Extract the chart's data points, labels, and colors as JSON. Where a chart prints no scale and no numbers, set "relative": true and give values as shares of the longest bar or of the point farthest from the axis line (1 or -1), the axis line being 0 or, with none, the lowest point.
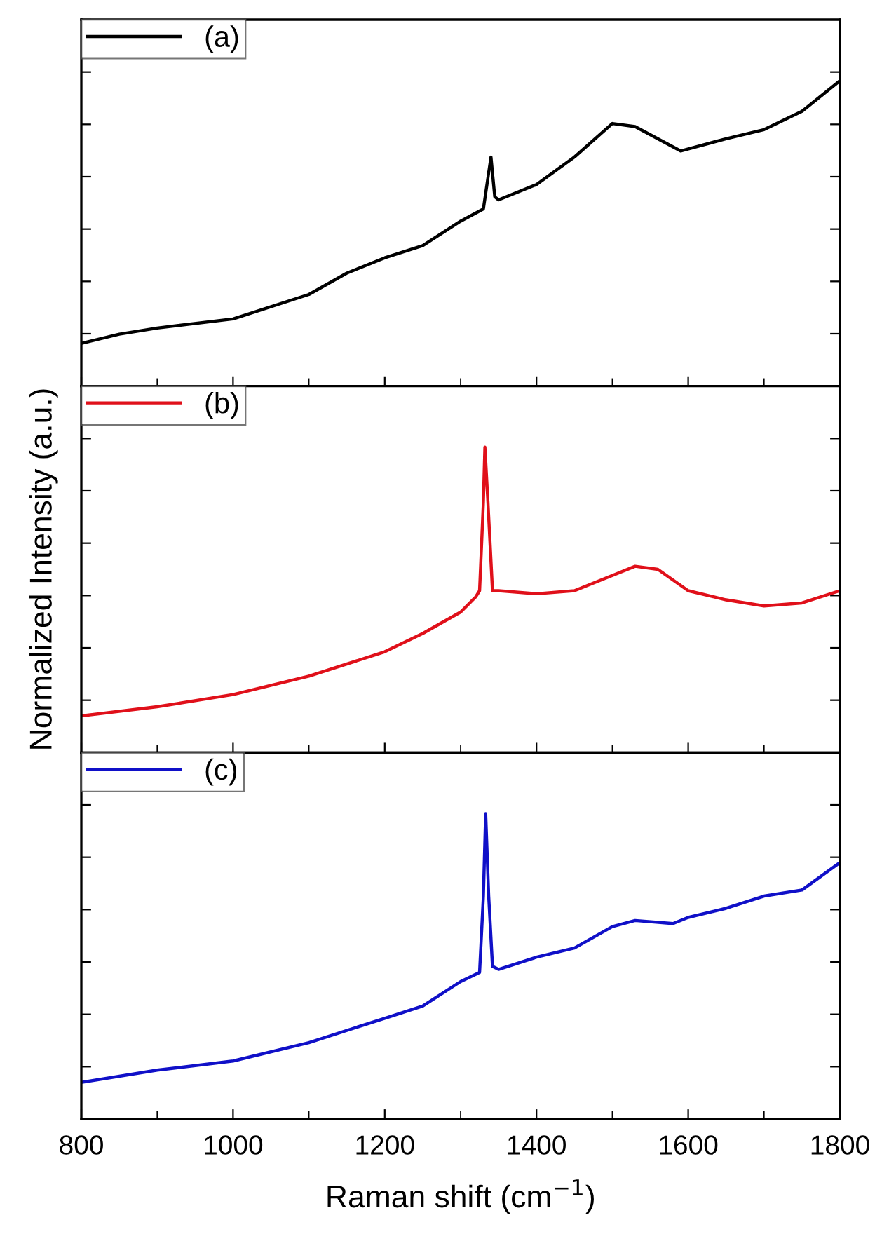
{
  "chart_data": [
    {
      "type": "line",
      "relative": true,
      "legend": "top left",
      "tick_labels": false,
      "xlim": [
        800,
        1800
      ],
      "xticks": [
        800,
        {
          "value": 900,
          "label": null
        },
        1000,
        {
          "value": 1100,
          "label": null
        },
        1200,
        {
          "value": 1300,
          "label": null
        },
        1400,
        {
          "value": 1500,
          "label": null
        },
        1600,
        {
          "value": 1700,
          "label": null
        },
        1800
      ],
      "series": [
        {
          "name": "(a)",
          "color": "#000000",
          "x": [
            800,
            850,
            900,
            1000,
            1100,
            1150,
            1200,
            1250,
            1300,
            1330,
            1340,
            1345,
            1350,
            1400,
            1450,
            1500,
            1530,
            1590,
            1650,
            1700,
            1750,
            1800
          ],
          "values": [
            0.14,
            0.17,
            0.19,
            0.22,
            0.3,
            0.37,
            0.42,
            0.46,
            0.54,
            0.58,
            0.75,
            0.62,
            0.61,
            0.66,
            0.75,
            0.86,
            0.85,
            0.77,
            0.81,
            0.84,
            0.9,
            1.0
          ]
        }
      ]
    },
    {
      "type": "line",
      "relative": true,
      "legend": "top left",
      "tick_labels": false,
      "xlim": [
        800,
        1800
      ],
      "ylabel": "Normalized Intensity (a.u.)",
      "xticks": [
        800,
        {
          "value": 900,
          "label": null
        },
        1000,
        {
          "value": 1100,
          "label": null
        },
        1200,
        {
          "value": 1300,
          "label": null
        },
        1400,
        {
          "value": 1500,
          "label": null
        },
        1600,
        {
          "value": 1700,
          "label": null
        },
        1800
      ],
      "series": [
        {
          "name": "(b)",
          "color": "#e0101a",
          "x": [
            800,
            900,
            1000,
            1100,
            1200,
            1250,
            1300,
            1320,
            1325,
            1330,
            1332,
            1336,
            1342,
            1350,
            1400,
            1450,
            1500,
            1530,
            1560,
            1600,
            1650,
            1700,
            1750,
            1800
          ],
          "values": [
            0.12,
            0.15,
            0.19,
            0.25,
            0.33,
            0.39,
            0.46,
            0.51,
            0.53,
            0.82,
            1,
            0.82,
            0.53,
            0.53,
            0.52,
            0.53,
            0.58,
            0.61,
            0.6,
            0.53,
            0.5,
            0.48,
            0.49,
            0.53
          ]
        }
      ]
    },
    {
      "type": "line",
      "relative": true,
      "legend": "top left",
      "tick_labels": "x",
      "xlim": [
        800,
        1800
      ],
      "xlabel": "Raman shift (cm$^{−1}$)",
      "xticks": [
        800,
        {
          "value": 900,
          "label": null
        },
        1000,
        {
          "value": 1100,
          "label": null
        },
        1200,
        {
          "value": 1300,
          "label": null
        },
        1400,
        {
          "value": 1500,
          "label": null
        },
        1600,
        {
          "value": 1700,
          "label": null
        },
        1800
      ],
      "series": [
        {
          "name": "(c)",
          "color": "#1010c8",
          "x": [
            800,
            900,
            1000,
            1100,
            1200,
            1250,
            1300,
            1325,
            1330,
            1333,
            1337,
            1342,
            1350,
            1400,
            1450,
            1500,
            1530,
            1580,
            1600,
            1650,
            1700,
            1750,
            1800
          ],
          "values": [
            0.12,
            0.16,
            0.19,
            0.25,
            0.33,
            0.37,
            0.45,
            0.48,
            0.73,
            1,
            0.73,
            0.5,
            0.49,
            0.53,
            0.56,
            0.63,
            0.65,
            0.64,
            0.66,
            0.69,
            0.73,
            0.75,
            0.84
          ]
        }
      ]
    }
  ]
}
